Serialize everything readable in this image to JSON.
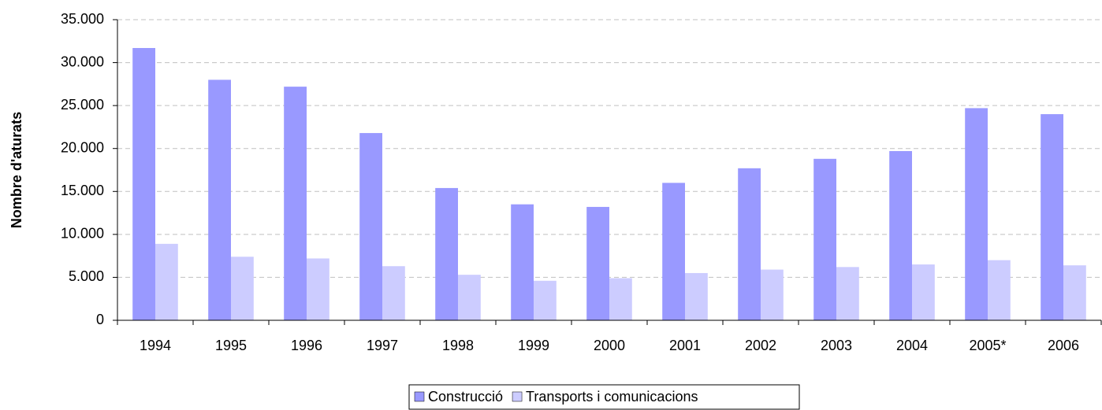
{
  "chart_data": {
    "type": "bar",
    "y_label": "Nombre d'aturats",
    "categories": [
      "1994",
      "1995",
      "1996",
      "1997",
      "1998",
      "1999",
      "2000",
      "2001",
      "2002",
      "2003",
      "2004",
      "2005*",
      "2006"
    ],
    "series": [
      {
        "name": "Construcció",
        "color": "#9999ff",
        "values": [
          31700,
          28000,
          27200,
          21800,
          15400,
          13500,
          13200,
          16000,
          17700,
          18800,
          19700,
          24700,
          24000
        ]
      },
      {
        "name": "Transports i comunicacions",
        "color": "#ccccff",
        "values": [
          8900,
          7400,
          7200,
          6300,
          5300,
          4600,
          4900,
          5500,
          5900,
          6200,
          6500,
          7000,
          6400
        ]
      }
    ],
    "ylim": [
      0,
      35000
    ],
    "yticks": [
      0,
      {
        "value": 5000,
        "label": "5.000"
      },
      {
        "value": 10000,
        "label": "10.000"
      },
      {
        "value": 15000,
        "label": "15.000"
      },
      {
        "value": 20000,
        "label": "20.000"
      },
      {
        "value": 25000,
        "label": "25.000"
      },
      {
        "value": 30000,
        "label": "30.000"
      },
      {
        "value": 35000,
        "label": "35.000"
      }
    ],
    "grid": true,
    "legend": "bottom"
  }
}
